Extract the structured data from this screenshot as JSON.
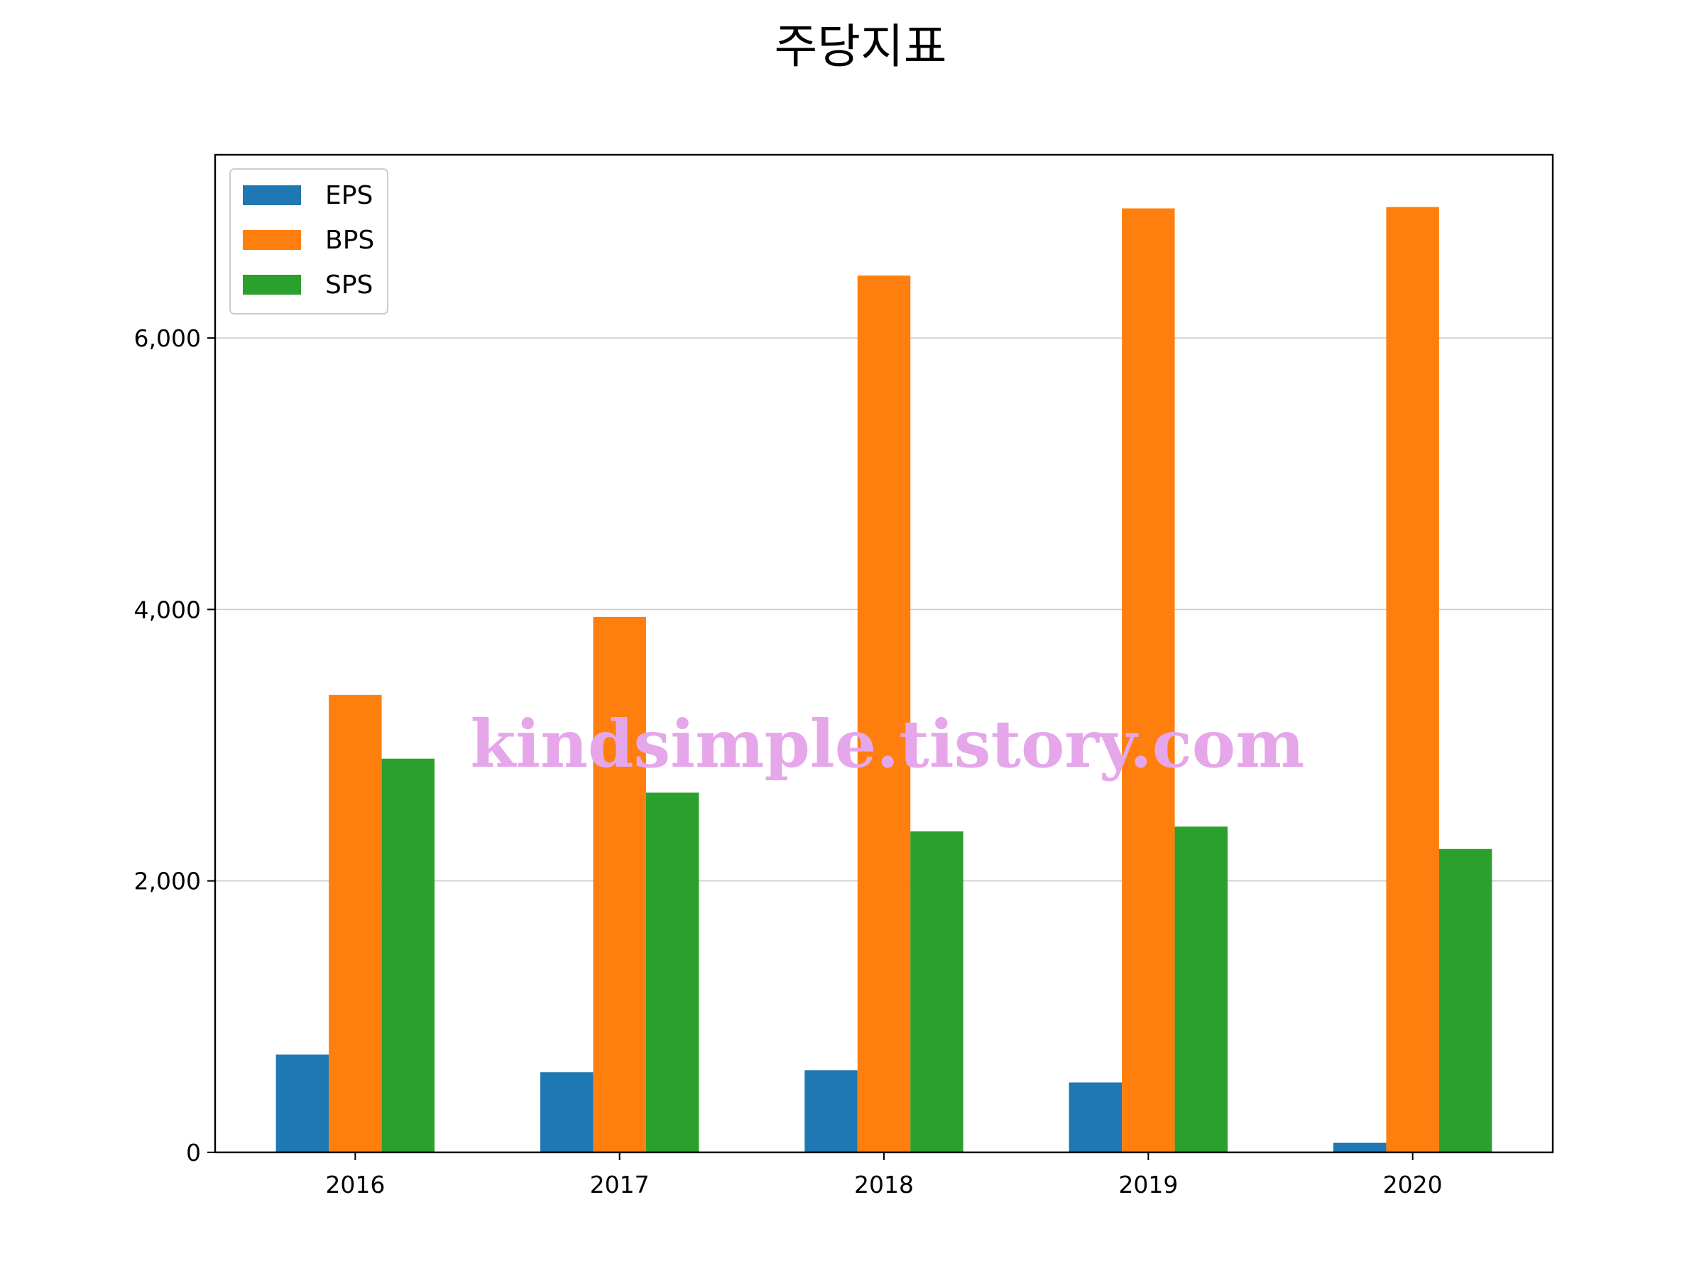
{
  "chart_data": {
    "type": "bar",
    "title": "주당지표",
    "xlabel": "",
    "ylabel": "",
    "categories": [
      "2016",
      "2017",
      "2018",
      "2019",
      "2020"
    ],
    "series": [
      {
        "name": "EPS",
        "color": "#1f77b4",
        "values": [
          720,
          590,
          605,
          515,
          70
        ]
      },
      {
        "name": "BPS",
        "color": "#ff7f0e",
        "values": [
          3370,
          3945,
          6460,
          6955,
          6965
        ]
      },
      {
        "name": "SPS",
        "color": "#2ca02c",
        "values": [
          2900,
          2650,
          2365,
          2400,
          2235
        ]
      }
    ],
    "ylim": [
      0,
      7350
    ],
    "yticks": [
      0,
      2000,
      4000,
      6000
    ],
    "ytick_labels": [
      "0",
      "2,000",
      "4,000",
      "6,000"
    ],
    "grid": "horizontal",
    "legend_position": "top-left"
  },
  "watermark": "kindsimple.tistory.com"
}
